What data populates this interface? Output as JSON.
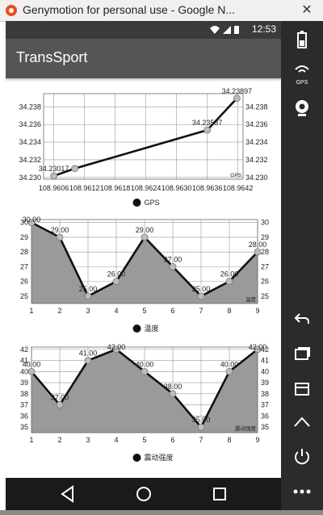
{
  "window": {
    "title": "Genymotion for personal use - Google N..."
  },
  "statusbar": {
    "time": "12:53"
  },
  "app": {
    "title": "TransSport"
  },
  "sidebar": {
    "gps_label": "GPS"
  },
  "charts": [
    {
      "type": "line",
      "legend": "GPS",
      "corner_label": "GPS",
      "x": [
        108.9606,
        108.96101,
        108.9636,
        108.96418
      ],
      "values": [
        34.23017,
        34.23101,
        34.23537,
        34.23897
      ],
      "point_labels": [
        "34.23017",
        "",
        "34.23537",
        "34.23897"
      ],
      "xticks": [
        "108.9606",
        "108.9612",
        "108.9618",
        "108.9624",
        "108.9630",
        "108.9636",
        "108.9642"
      ],
      "xtick_values": [
        108.9606,
        108.9612,
        108.9618,
        108.9624,
        108.963,
        108.9636,
        108.9642
      ],
      "yticks": [
        "34.230",
        "34.232",
        "34.234",
        "34.236",
        "34.238"
      ],
      "ytick_values": [
        34.23,
        34.232,
        34.234,
        34.236,
        34.238
      ],
      "xlim": [
        108.9604,
        108.9643
      ],
      "ylim": [
        34.2298,
        34.2395
      ],
      "fill": false
    },
    {
      "type": "area",
      "legend": "温度",
      "corner_label": "温度",
      "x": [
        1,
        2,
        3,
        4,
        5,
        6,
        7,
        8,
        9
      ],
      "values": [
        30,
        29,
        25,
        26,
        29,
        27,
        25,
        26,
        28
      ],
      "point_labels": [
        "30.00",
        "29.00",
        "25.00",
        "26.00",
        "29.00",
        "27.00",
        "25.00",
        "26.00",
        "28.00"
      ],
      "xticks": [
        "1",
        "2",
        "3",
        "4",
        "5",
        "6",
        "7",
        "8",
        "9"
      ],
      "xtick_values": [
        1,
        2,
        3,
        4,
        5,
        6,
        7,
        8,
        9
      ],
      "yticks": [
        "25",
        "26",
        "27",
        "28",
        "29",
        "30"
      ],
      "ytick_values": [
        25,
        26,
        27,
        28,
        29,
        30
      ],
      "xlim": [
        1,
        9
      ],
      "ylim": [
        24.5,
        30.2
      ],
      "fill": true
    },
    {
      "type": "area",
      "legend": "震动强度",
      "corner_label": "震动强度",
      "x": [
        1,
        2,
        3,
        4,
        5,
        6,
        7,
        8,
        9
      ],
      "values": [
        40,
        37,
        41,
        42,
        40,
        38,
        35,
        40,
        42
      ],
      "point_labels": [
        "40.00",
        "37.00",
        "41.00",
        "42.00",
        "40.00",
        "38.00",
        "35.00",
        "40.00",
        "42.00"
      ],
      "xticks": [
        "1",
        "2",
        "3",
        "4",
        "5",
        "6",
        "7",
        "8",
        "9"
      ],
      "xtick_values": [
        1,
        2,
        3,
        4,
        5,
        6,
        7,
        8,
        9
      ],
      "yticks": [
        "35",
        "36",
        "37",
        "38",
        "39",
        "40",
        "41",
        "42"
      ],
      "ytick_values": [
        35,
        36,
        37,
        38,
        39,
        40,
        41,
        42
      ],
      "xlim": [
        1,
        9
      ],
      "ylim": [
        34.5,
        42.2
      ],
      "fill": true
    }
  ]
}
